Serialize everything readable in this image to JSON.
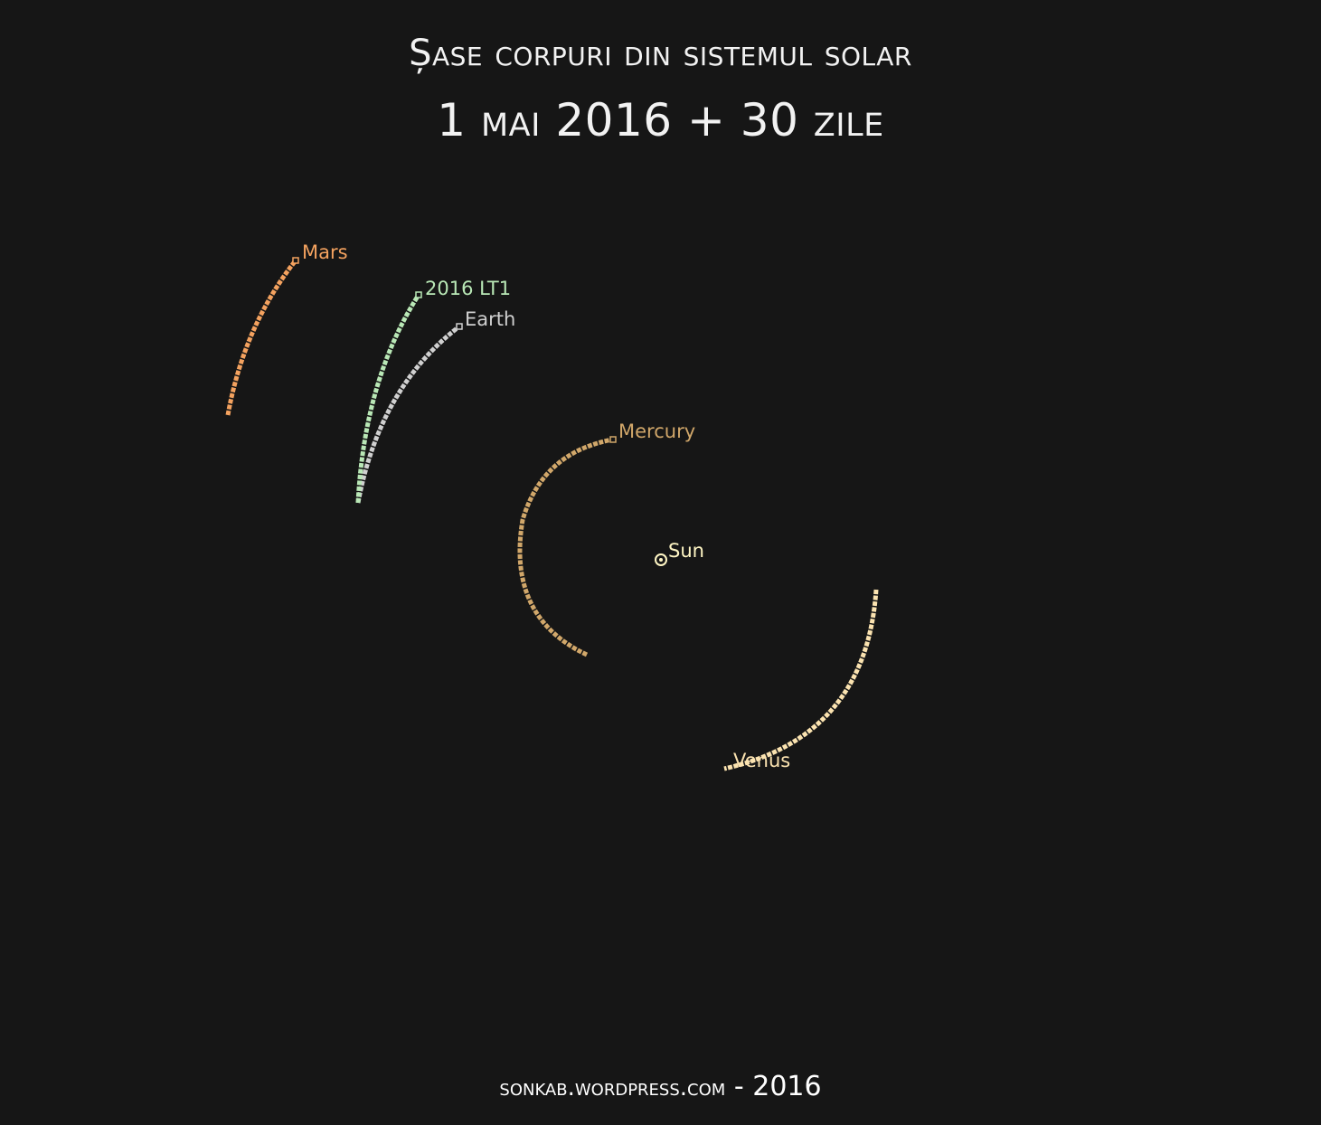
{
  "title": {
    "line1": "Șase corpuri din sistemul solar",
    "line2": "1 mai 2016 + 30 zile"
  },
  "footer": {
    "site": "sonkab.wordpress.com",
    "separator": " - ",
    "year": "2016"
  },
  "bodies": [
    {
      "id": "mars",
      "label": "Mars",
      "color": "#f4a25f"
    },
    {
      "id": "lt1",
      "label": "2016 LT1",
      "color": "#b9e8b6"
    },
    {
      "id": "earth",
      "label": "Earth",
      "color": "#d0d0d0"
    },
    {
      "id": "mercury",
      "label": "Mercury",
      "color": "#d1a76a"
    },
    {
      "id": "venus",
      "label": "Venus",
      "color": "#fbe3b0"
    },
    {
      "id": "sun",
      "label": "Sun",
      "color": "#fff6c4"
    }
  ]
}
